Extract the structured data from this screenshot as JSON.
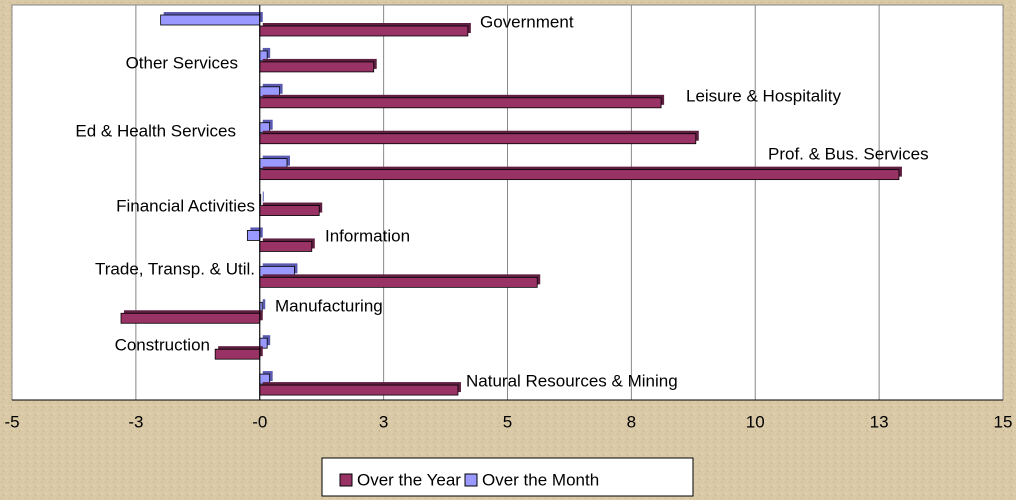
{
  "chart_data": {
    "type": "hbar",
    "categories": [
      "Government",
      "Other Services",
      "Leisure & Hospitality",
      "Ed & Health Services",
      "Prof. & Bus. Services",
      "Financial Activities",
      "Information",
      "Trade, Transp. & Util.",
      "Manufacturing",
      "Construction",
      "Natural Resources & Mining"
    ],
    "series": [
      {
        "name": "Over the Year",
        "color": "#993366",
        "values": [
          4.2,
          2.3,
          8.1,
          8.8,
          12.9,
          1.2,
          1.05,
          5.6,
          -2.8,
          -0.9,
          4.0
        ]
      },
      {
        "name": "Over the Month",
        "color": "#9999ff",
        "values": [
          -2.0,
          0.15,
          0.4,
          0.2,
          0.55,
          0.02,
          -0.25,
          0.7,
          0.05,
          0.15,
          0.2
        ]
      }
    ],
    "xlim": [
      -5,
      15
    ],
    "xticks": [
      -5,
      {
        "value": -2.5,
        "label": "-3"
      },
      {
        "value": 0,
        "label": "-0"
      },
      {
        "value": 2.5,
        "label": "3"
      },
      5,
      {
        "value": 7.5,
        "label": "8"
      },
      10,
      {
        "value": 12.5,
        "label": "13"
      },
      15
    ],
    "grid": true,
    "legend": "bottom"
  }
}
